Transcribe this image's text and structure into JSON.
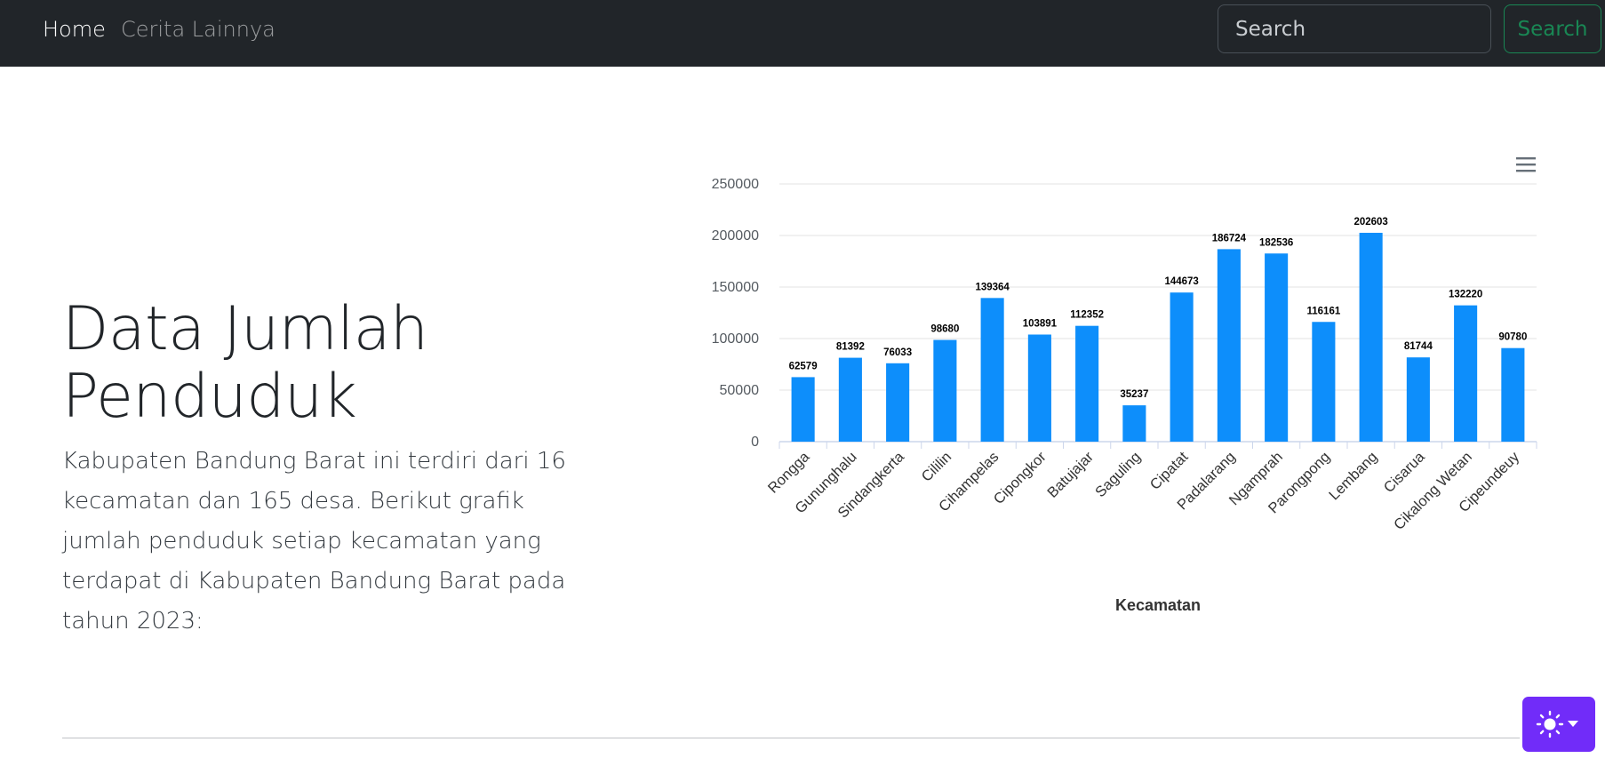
{
  "navbar": {
    "links": [
      {
        "label": "Home",
        "active": true
      },
      {
        "label": "Cerita Lainnya",
        "active": false
      }
    ],
    "search": {
      "placeholder": "Search",
      "value": "",
      "button_label": "Search"
    }
  },
  "hero": {
    "title": "Data Jumlah Penduduk",
    "description": "Kabupaten Bandung Barat ini terdiri dari 16 kecamatan dan 165 desa. Berikut grafik jumlah penduduk setiap kecamatan yang terdapat di Kabupaten Bandung Barat pada tahun 2023:"
  },
  "chart_data": {
    "type": "bar",
    "title": "",
    "xlabel": "Kecamatan",
    "ylabel": "",
    "ylim": [
      0,
      250000
    ],
    "yticks": [
      0,
      50000,
      100000,
      150000,
      200000,
      250000
    ],
    "categories": [
      "Rongga",
      "Gununghalu",
      "Sindangkerta",
      "Cililin",
      "Cihampelas",
      "Cipongkor",
      "Batujajar",
      "Saguling",
      "Cipatat",
      "Padalarang",
      "Ngamprah",
      "Parongpong",
      "Lembang",
      "Cisarua",
      "Cikalong Wetan",
      "Cipeundeuy"
    ],
    "values": [
      62579,
      81392,
      76033,
      98680,
      139364,
      103891,
      112352,
      35237,
      144673,
      186724,
      182536,
      116161,
      202603,
      81744,
      132220,
      90780
    ],
    "data_labels": true,
    "grid": true,
    "legend": false,
    "bar_color": "#0d8efb"
  },
  "chart_menu": {
    "icon": "hamburger-menu-icon"
  },
  "theme_toggle": {
    "icon": "sun-icon",
    "caret": "caret-down-icon",
    "color": "#712cf9"
  }
}
